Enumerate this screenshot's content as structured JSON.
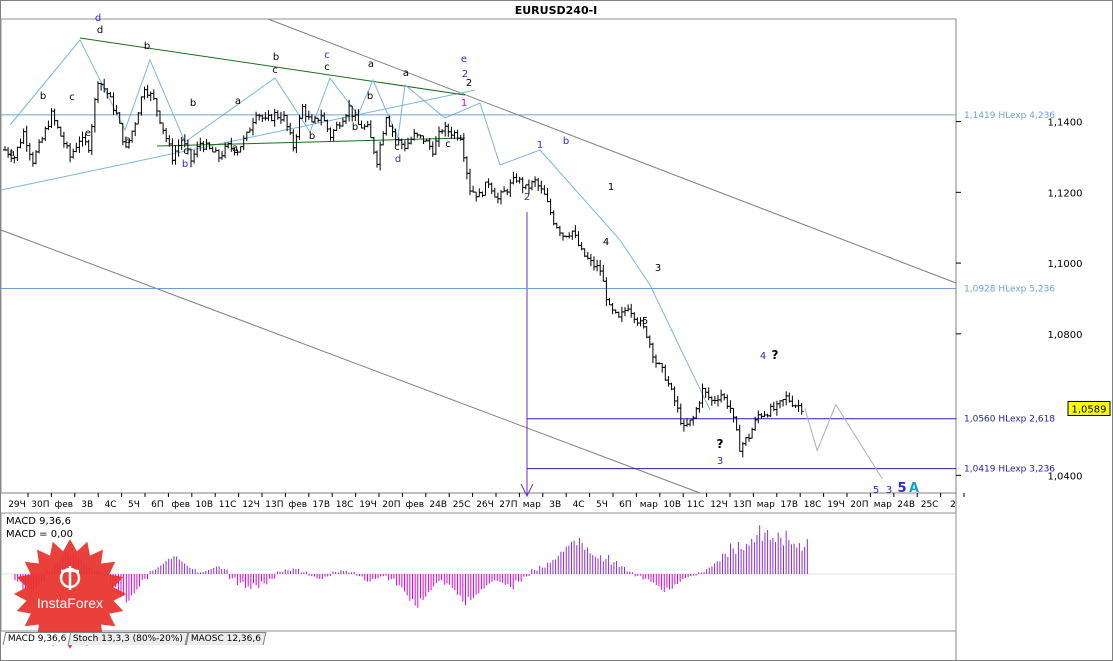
{
  "window": {
    "title": "EURUSD240-I"
  },
  "price_axis": {
    "ticks": [
      "1,1400",
      "1,1200",
      "1,1000",
      "1,0800",
      "1,0400"
    ],
    "current_price": "1,0589",
    "current_price_color": "#ffff00"
  },
  "time_axis": {
    "labels": [
      "29Ч",
      "30П",
      "фев",
      "3В",
      "4С",
      "5Ч",
      "6П",
      "фев",
      "10В",
      "11С",
      "12Ч",
      "13П",
      "фев",
      "17В",
      "18С",
      "19Ч",
      "20П",
      "фев",
      "24В",
      "25С",
      "26Ч",
      "27П",
      "мар",
      "3В",
      "4С",
      "5Ч",
      "6П",
      "мар",
      "10В",
      "11С",
      "12Ч",
      "13П",
      "мар",
      "17В",
      "18С",
      "19Ч",
      "20П",
      "мар",
      "24В",
      "25С",
      "2"
    ]
  },
  "levels": [
    {
      "label": "1,1419 HLexp 4,236",
      "color": "#6f9fd8"
    },
    {
      "label": "1,0928 HLexp 5,236",
      "color": "#6f9fd8"
    },
    {
      "label": "1,0560 HLexp 2,618",
      "color": "#2222aa"
    },
    {
      "label": "1,0419 HLexp 3,236",
      "color": "#2222aa"
    }
  ],
  "wave_labels": {
    "black": [
      "a",
      "b",
      "c",
      "d",
      "e",
      "b",
      "a",
      "b",
      "c",
      "a",
      "b",
      "c",
      "a",
      "b",
      "c",
      "a",
      "b",
      "c",
      "a",
      "b",
      "c",
      "2",
      "1",
      "4",
      "3",
      "5",
      "?",
      "?"
    ],
    "blue": [
      "d",
      "b",
      "c",
      "d",
      "b",
      "2",
      "e",
      "2",
      "1",
      "4",
      "3",
      "5",
      "3",
      "5",
      "A"
    ],
    "magenta": [
      "1"
    ]
  },
  "indicator": {
    "line1": "MACD 9,36,6",
    "line2": "MACD = 0,00",
    "colors": {
      "positive": "#8a2be2",
      "negative": "#dd00dd"
    }
  },
  "tabs": [
    {
      "label": "MACD 9,36,6"
    },
    {
      "label": "Stoch 13,3,3 (80%-20%)"
    },
    {
      "label": "MAOSC 12,36,6"
    }
  ],
  "logo": {
    "text": "InstaForex",
    "color": "#e8302a"
  },
  "chart_data": {
    "type": "bar",
    "symbol": "EURUSD240-I",
    "ylim": [
      1.035,
      1.169
    ],
    "grid": false,
    "price_path": [
      [
        0,
        1.132
      ],
      [
        3,
        1.13
      ],
      [
        6,
        1.137
      ],
      [
        9,
        1.129
      ],
      [
        12,
        1.135
      ],
      [
        15,
        1.142
      ],
      [
        18,
        1.136
      ],
      [
        21,
        1.13
      ],
      [
        24,
        1.135
      ],
      [
        27,
        1.133
      ],
      [
        30,
        1.152
      ],
      [
        33,
        1.148
      ],
      [
        36,
        1.142
      ],
      [
        39,
        1.132
      ],
      [
        42,
        1.14
      ],
      [
        45,
        1.15
      ],
      [
        48,
        1.146
      ],
      [
        51,
        1.138
      ],
      [
        54,
        1.13
      ],
      [
        57,
        1.135
      ],
      [
        60,
        1.129
      ],
      [
        63,
        1.134
      ],
      [
        66,
        1.132
      ],
      [
        69,
        1.13
      ],
      [
        72,
        1.133
      ],
      [
        75,
        1.132
      ],
      [
        78,
        1.136
      ],
      [
        81,
        1.143
      ],
      [
        84,
        1.14
      ],
      [
        87,
        1.142
      ],
      [
        90,
        1.141
      ],
      [
        93,
        1.133
      ],
      [
        96,
        1.144
      ],
      [
        99,
        1.139
      ],
      [
        102,
        1.142
      ],
      [
        105,
        1.136
      ],
      [
        108,
        1.14
      ],
      [
        111,
        1.144
      ],
      [
        114,
        1.139
      ],
      [
        117,
        1.138
      ],
      [
        120,
        1.129
      ],
      [
        123,
        1.142
      ],
      [
        126,
        1.135
      ],
      [
        129,
        1.133
      ],
      [
        132,
        1.136
      ],
      [
        135,
        1.135
      ],
      [
        138,
        1.132
      ],
      [
        141,
        1.138
      ],
      [
        144,
        1.137
      ],
      [
        147,
        1.136
      ],
      [
        150,
        1.121
      ],
      [
        153,
        1.119
      ],
      [
        156,
        1.123
      ],
      [
        159,
        1.118
      ],
      [
        162,
        1.121
      ],
      [
        165,
        1.124
      ],
      [
        168,
        1.121
      ],
      [
        171,
        1.123
      ],
      [
        174,
        1.119
      ],
      [
        177,
        1.112
      ],
      [
        180,
        1.108
      ],
      [
        183,
        1.109
      ],
      [
        186,
        1.103
      ],
      [
        189,
        1.1
      ],
      [
        192,
        1.098
      ],
      [
        195,
        1.087
      ],
      [
        198,
        1.084
      ],
      [
        201,
        1.088
      ],
      [
        204,
        1.084
      ],
      [
        207,
        1.08
      ],
      [
        210,
        1.072
      ],
      [
        213,
        1.068
      ],
      [
        216,
        1.061
      ],
      [
        219,
        1.053
      ],
      [
        222,
        1.056
      ],
      [
        225,
        1.064
      ],
      [
        228,
        1.061
      ],
      [
        231,
        1.063
      ],
      [
        234,
        1.059
      ],
      [
        237,
        1.048
      ],
      [
        240,
        1.051
      ],
      [
        243,
        1.057
      ],
      [
        246,
        1.058
      ],
      [
        249,
        1.059
      ],
      [
        252,
        1.062
      ],
      [
        255,
        1.06
      ],
      [
        258,
        1.059
      ]
    ],
    "forecast_path": [
      [
        258,
        1.059
      ],
      [
        262,
        1.047
      ],
      [
        268,
        1.06
      ],
      [
        283,
        1.039
      ]
    ],
    "indicator_values": [
      -3,
      -6,
      -8,
      -5,
      2,
      6,
      9,
      8,
      6,
      4,
      2,
      -1,
      -5,
      -9,
      -11,
      -8,
      -3,
      2,
      4,
      6,
      7,
      5,
      3,
      1,
      2,
      3,
      2,
      -2,
      -5,
      -8,
      -6,
      -4,
      -2,
      1,
      2,
      3,
      1,
      -1,
      -2,
      -1,
      1,
      2,
      1,
      -1,
      -3,
      -2,
      -1,
      -3,
      -7,
      -11,
      -13,
      -10,
      -7,
      -4,
      -6,
      -9,
      -12,
      -10,
      -8,
      -6,
      -4,
      -5,
      -6,
      -3,
      -1,
      2,
      4,
      7,
      9,
      11,
      13,
      14,
      12,
      10,
      8,
      5,
      3,
      1,
      -1,
      -3,
      -5,
      -7,
      -6,
      -4,
      -2,
      -1,
      1,
      3,
      5,
      8,
      12,
      15,
      18,
      20,
      17,
      14,
      16,
      19,
      17,
      15
    ]
  }
}
